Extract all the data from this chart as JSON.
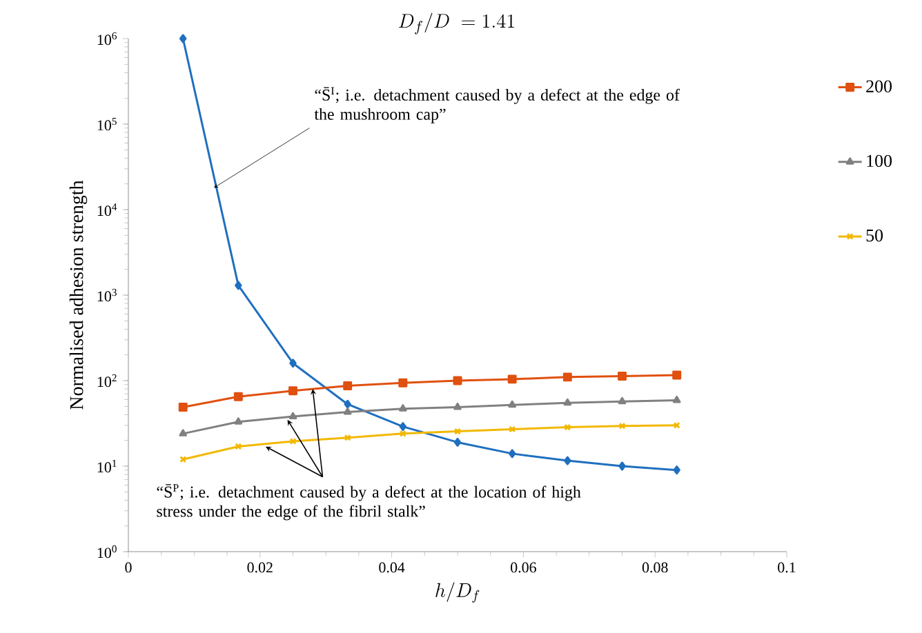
{
  "chart_data": {
    "type": "line",
    "title": "D_f/D\\ = 1.41",
    "xlabel": "h/D_f",
    "ylabel": "Normalised adhesion strength",
    "log": "y",
    "legend": "right",
    "grid": false,
    "x": [
      0.0083,
      0.0167,
      0.025,
      0.0333,
      0.0417,
      0.05,
      0.0583,
      0.0667,
      0.075,
      0.0833
    ],
    "xlim": [
      0,
      0.1
    ],
    "xticks": [
      0,
      0.02,
      0.04,
      0.06,
      0.08,
      0.1
    ],
    "ylim": [
      1,
      1000000
    ],
    "yticks": [
      {
        "value": 1,
        "label": "10$^{0}$"
      },
      {
        "value": 10,
        "label": "10$^{1}$"
      },
      {
        "value": 100,
        "label": "10$^{2}$"
      },
      {
        "value": 1000,
        "label": "10$^{3}$"
      },
      {
        "value": 10000,
        "label": "10$^{4}$"
      },
      {
        "value": 100000,
        "label": "10$^{5}$"
      },
      {
        "value": 1000000,
        "label": "10$^{6}$"
      }
    ],
    "series": [
      {
        "color": "#1f6fbf",
        "marker": "diamond",
        "values": [
          1000000,
          1300,
          160,
          53,
          29,
          19,
          14,
          11.6,
          10,
          9
        ]
      },
      {
        "name": "200",
        "color": "#e0500f",
        "marker": "square",
        "values": [
          49,
          65,
          76,
          87,
          94,
          100,
          104,
          110,
          113,
          116
        ]
      },
      {
        "name": "100",
        "color": "#808080",
        "marker": "triangle",
        "values": [
          24,
          33,
          38,
          43,
          47,
          49,
          52,
          55,
          57,
          59
        ]
      },
      {
        "name": "50",
        "color": "#f2b800",
        "marker": "cross",
        "values": [
          12,
          17,
          19.5,
          21.5,
          24,
          25.5,
          27,
          28.5,
          29.5,
          30
        ]
      }
    ],
    "annotations": [
      {
        "text": "“S̄$^{I}$; i.e. detachment caused by a defect at the edge of the mushroom cap”",
        "x": 0.013,
        "y": 18000
      },
      {
        "text": "“S̄$^{P}$; i.e. detachment caused by a defect at the location of high stress under the edge of the fibril stalk”",
        "x": 0.028,
        "y": 80
      }
    ]
  }
}
